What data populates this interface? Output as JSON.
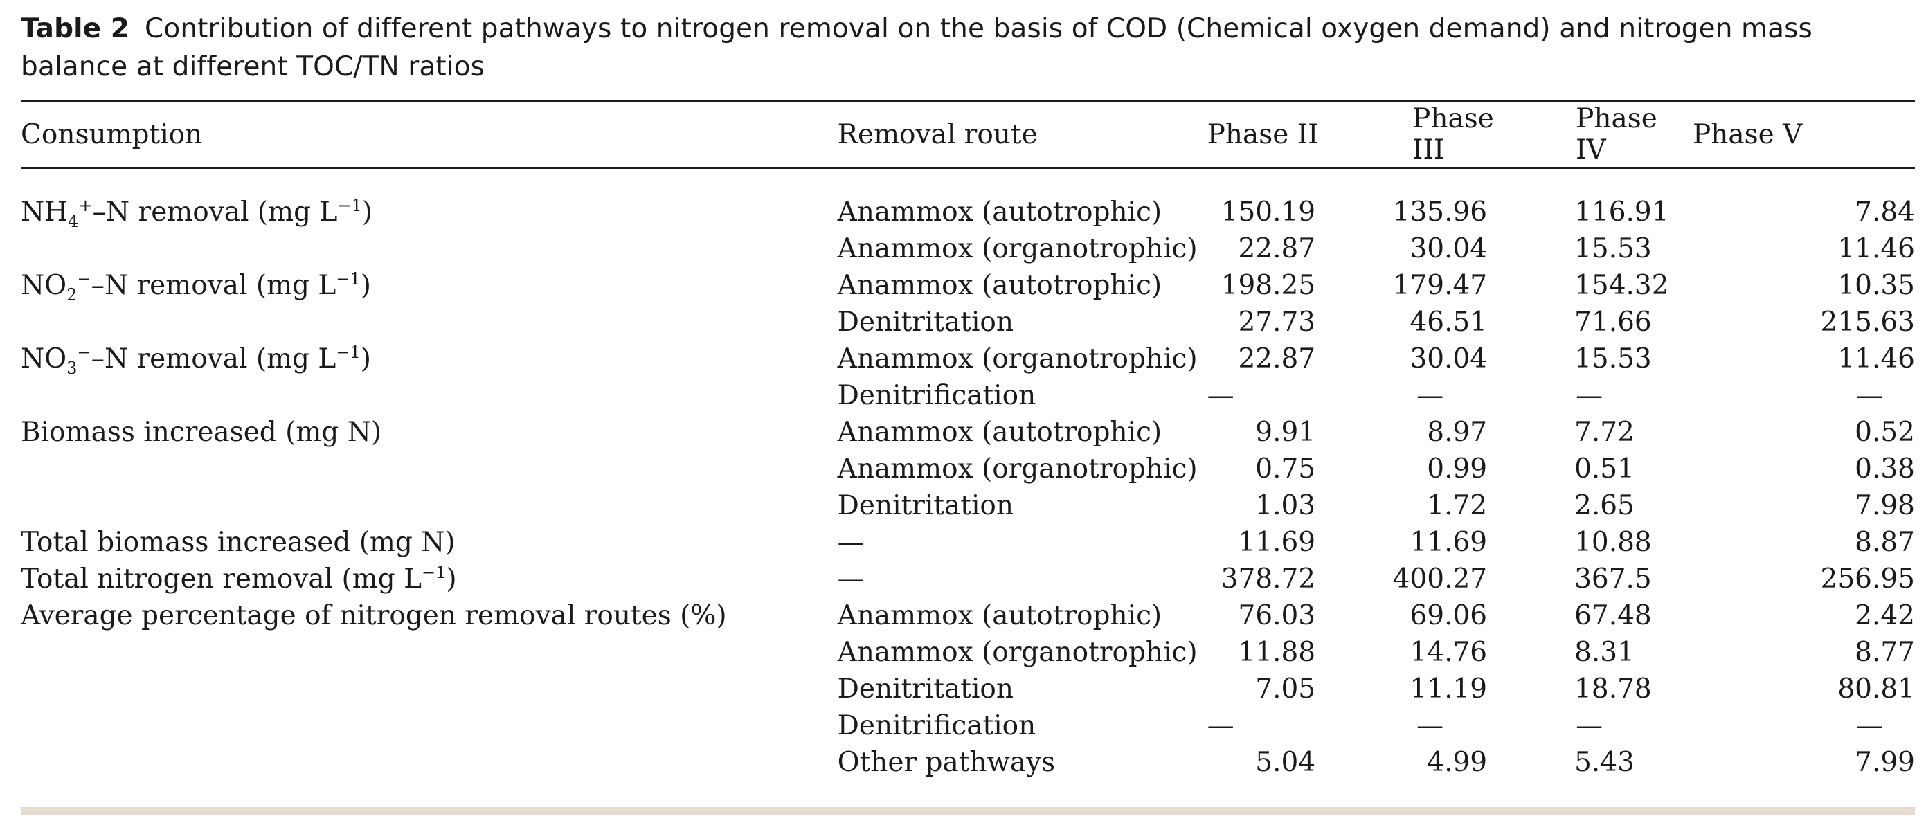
{
  "caption": {
    "label": "Table 2",
    "text": "Contribution of different pathways to nitrogen removal on the basis of COD (Chemical oxygen demand) and nitrogen mass balance at different TOC/TN ratios"
  },
  "headers": {
    "consumption": "Consumption",
    "route": "Removal route",
    "p2": "Phase II",
    "p3": "Phase III",
    "p4": "Phase IV",
    "p5": "Phase V"
  },
  "rows": [
    {
      "cons_html": "NH<sub>4</sub><sup>+</sup>–N removal (mg L<sup>−1</sup>)",
      "route": "Anammox (autotrophic)",
      "p2": "150.19",
      "p3": "135.96",
      "p4": "116.91",
      "p5": "7.84"
    },
    {
      "cons_html": "",
      "route": "Anammox (organotrophic)",
      "p2": "22.87",
      "p3": "30.04",
      "p4": "15.53",
      "p5": "11.46"
    },
    {
      "cons_html": "NO<sub>2</sub><sup>−</sup>–N removal (mg L<sup>−1</sup>)",
      "route": "Anammox (autotrophic)",
      "p2": "198.25",
      "p3": "179.47",
      "p4": "154.32",
      "p5": "10.35"
    },
    {
      "cons_html": "",
      "route": "Denitritation",
      "p2": "27.73",
      "p3": "46.51",
      "p4": "71.66",
      "p5": "215.63"
    },
    {
      "cons_html": "NO<sub>3</sub><sup>−</sup>–N removal (mg L<sup>−1</sup>)",
      "route": "Anammox (organotrophic)",
      "p2": "22.87",
      "p3": "30.04",
      "p4": "15.53",
      "p5": "11.46"
    },
    {
      "cons_html": "",
      "route": "Denitrification",
      "p2": "—",
      "p3": "—",
      "p4": "—",
      "p5": "—"
    },
    {
      "cons_html": "Biomass increased (mg N)",
      "route": "Anammox (autotrophic)",
      "p2": "9.91",
      "p3": "8.97",
      "p4": "7.72",
      "p5": "0.52"
    },
    {
      "cons_html": "",
      "route": "Anammox (organotrophic)",
      "p2": "0.75",
      "p3": "0.99",
      "p4": "0.51",
      "p5": "0.38"
    },
    {
      "cons_html": "",
      "route": "Denitritation",
      "p2": "1.03",
      "p3": "1.72",
      "p4": "2.65",
      "p5": "7.98"
    },
    {
      "cons_html": "Total biomass increased (mg N)",
      "route": "—",
      "p2": "11.69",
      "p3": "11.69",
      "p4": "10.88",
      "p5": "8.87"
    },
    {
      "cons_html": "Total nitrogen removal (mg L<sup>−1</sup>)",
      "route": "—",
      "p2": "378.72",
      "p3": "400.27",
      "p4": "367.5",
      "p5": "256.95"
    },
    {
      "cons_html": "Average percentage of nitrogen removal routes (%)",
      "route": "Anammox (autotrophic)",
      "p2": "76.03",
      "p3": "69.06",
      "p4": "67.48",
      "p5": "2.42",
      "rowspan": 5
    },
    {
      "route": "Anammox (organotrophic)",
      "p2": "11.88",
      "p3": "14.76",
      "p4": "8.31",
      "p5": "8.77",
      "skip_cons": true
    },
    {
      "route": "Denitritation",
      "p2": "7.05",
      "p3": "11.19",
      "p4": "18.78",
      "p5": "80.81",
      "skip_cons": true
    },
    {
      "route": "Denitrification",
      "p2": "—",
      "p3": "—",
      "p4": "—",
      "p5": "—",
      "skip_cons": true
    },
    {
      "route": "Other pathways",
      "p2": "5.04",
      "p3": "4.99",
      "p4": "5.43",
      "p5": "7.99",
      "skip_cons": true
    }
  ]
}
